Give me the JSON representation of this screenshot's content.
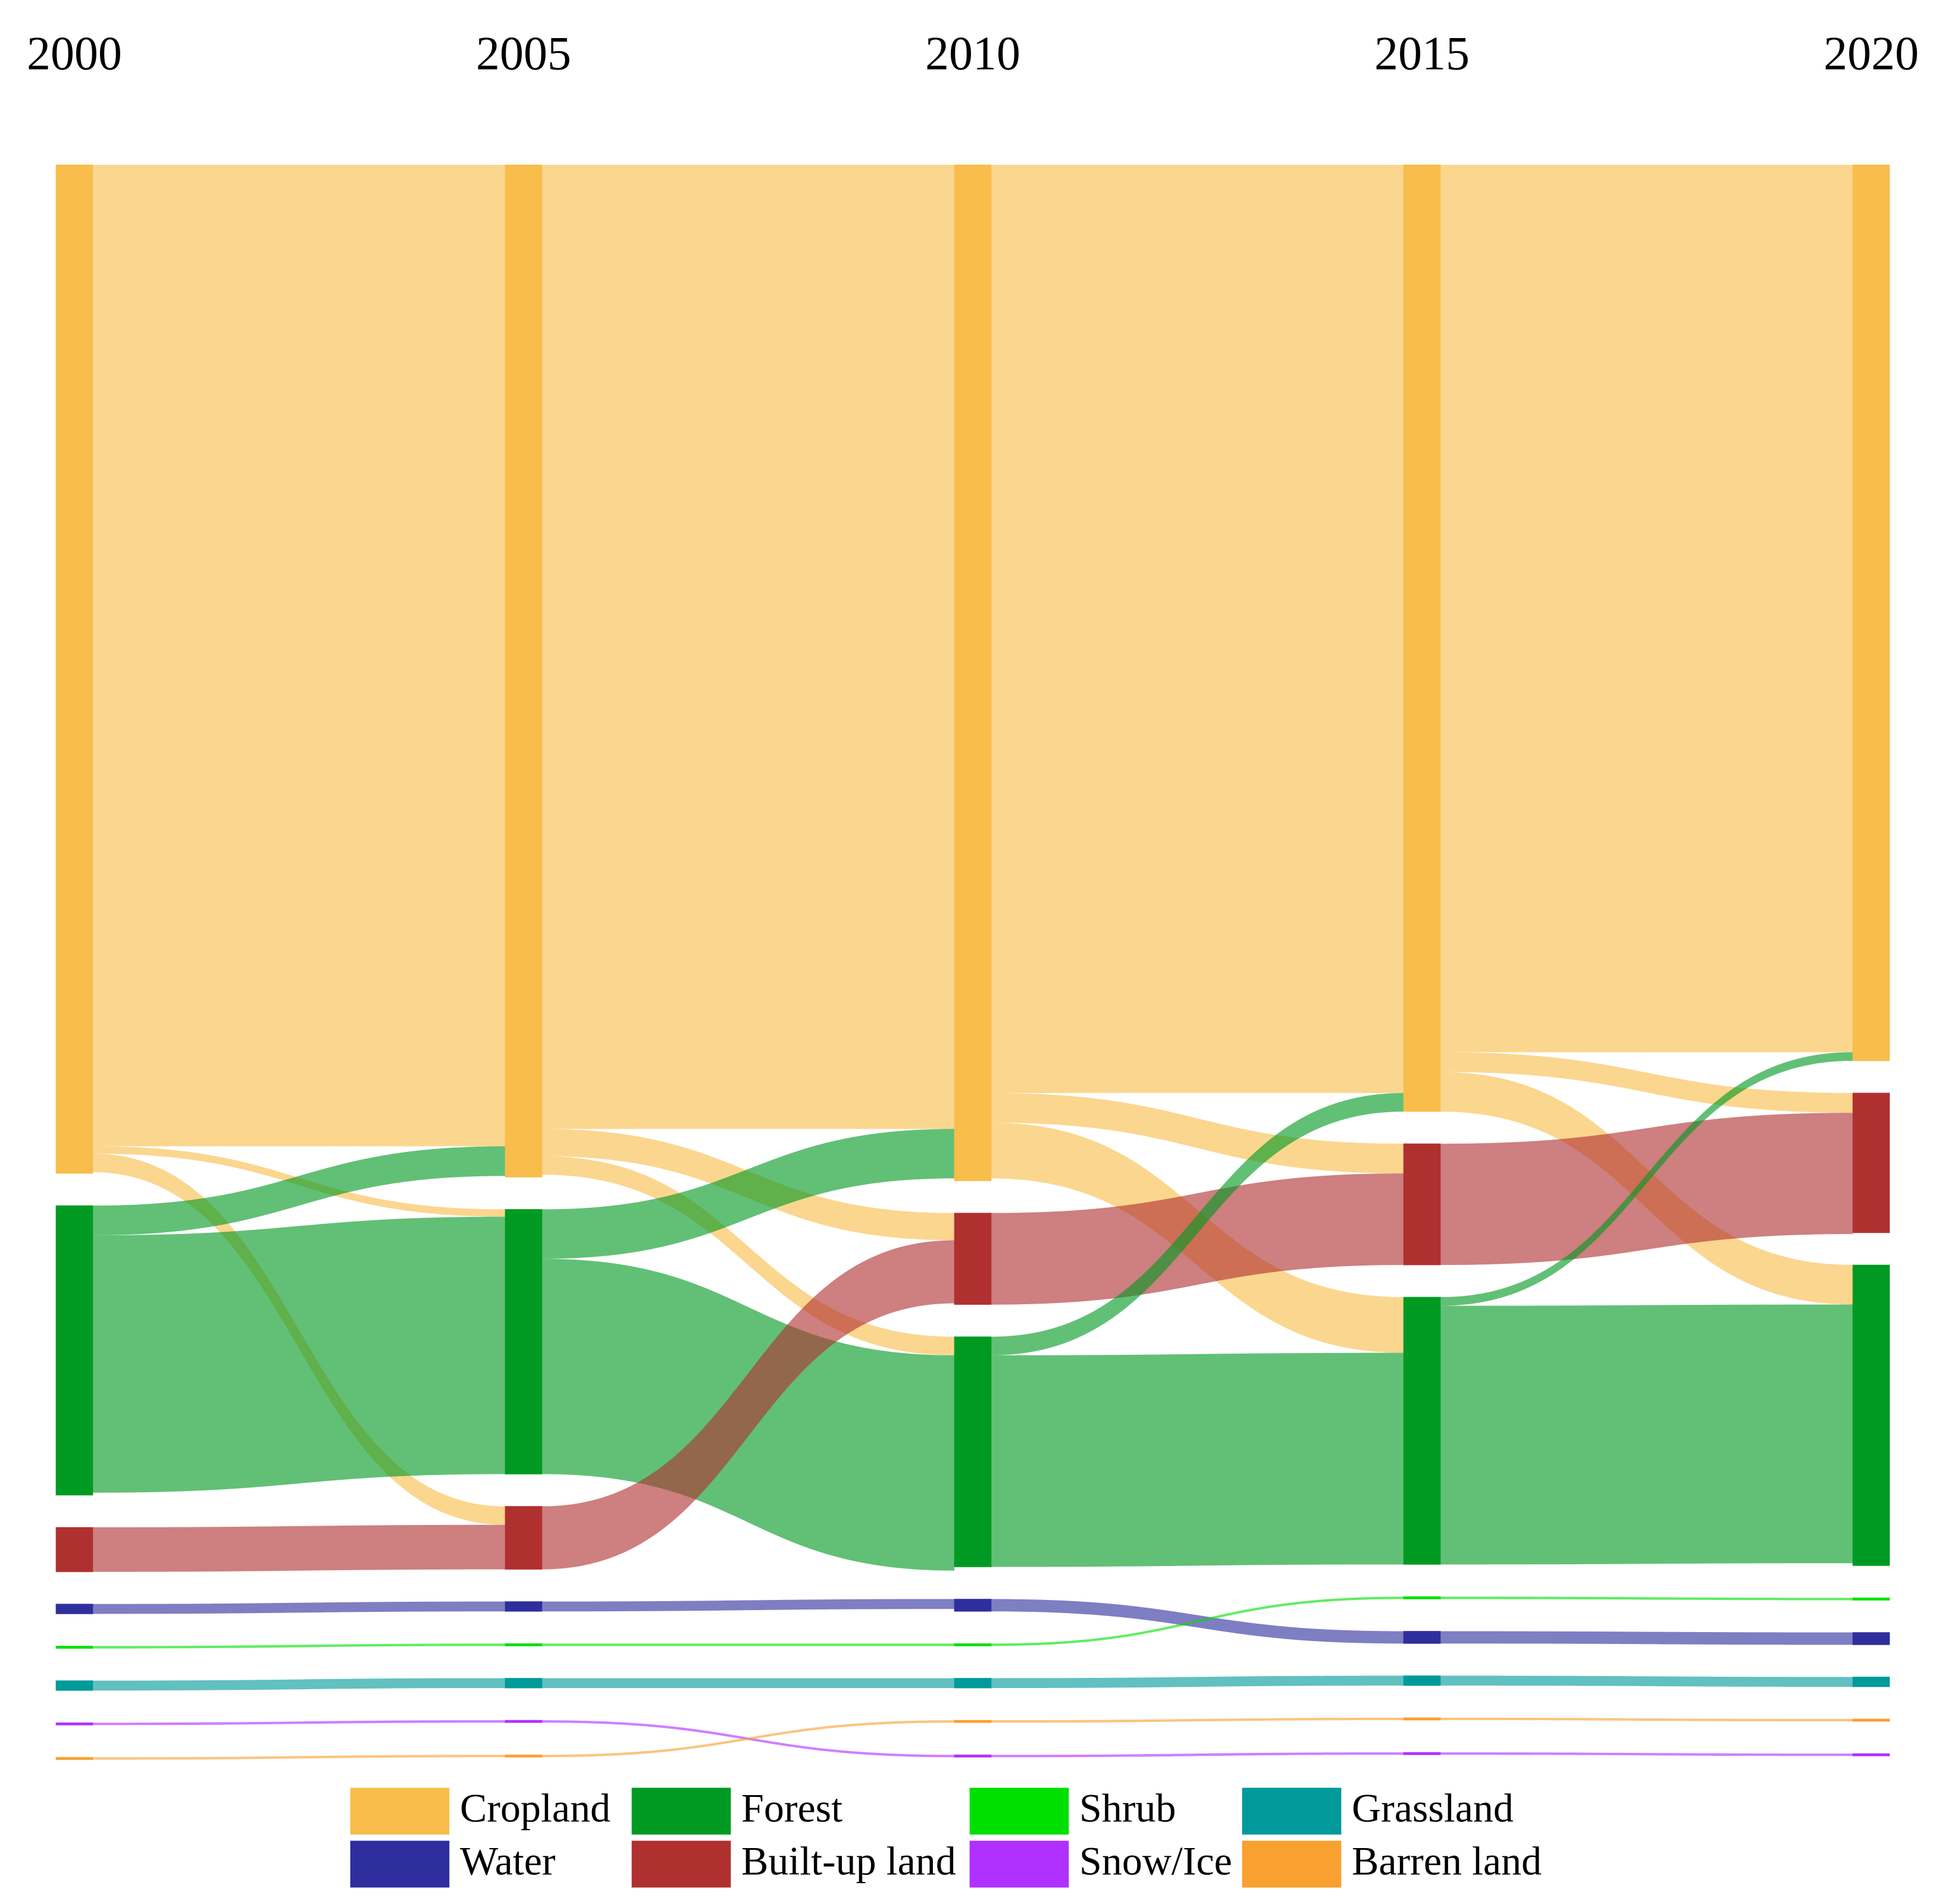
{
  "chart_data": {
    "type": "sankey",
    "categories": [
      {
        "name": "Cropland",
        "color": "#f8bd4a"
      },
      {
        "name": "Forest",
        "color": "#009a22"
      },
      {
        "name": "Shrub",
        "color": "#00e000"
      },
      {
        "name": "Grassland",
        "color": "#009a9a"
      },
      {
        "name": "Water",
        "color": "#2e2e9e"
      },
      {
        "name": "Built-up land",
        "color": "#b03030"
      },
      {
        "name": "Snow/Ice",
        "color": "#b030ff"
      },
      {
        "name": "Barren land",
        "color": "#f8a030"
      }
    ],
    "columns": [
      {
        "label": "2000",
        "nodes": [
          {
            "category": "Cropland",
            "value": 815
          },
          {
            "category": "Forest",
            "value": 234
          },
          {
            "category": "Built-up land",
            "value": 36
          },
          {
            "category": "Water",
            "value": 8
          },
          {
            "category": "Shrub",
            "value": 2
          },
          {
            "category": "Grassland",
            "value": 8
          },
          {
            "category": "Snow/Ice",
            "value": 2
          },
          {
            "category": "Barren land",
            "value": 2
          }
        ],
        "flows": [
          {
            "source": "Cropland",
            "target": "Cropland",
            "value": 793
          },
          {
            "source": "Cropland",
            "target": "Forest",
            "value": 6
          },
          {
            "source": "Cropland",
            "target": "Built-up land",
            "value": 15
          },
          {
            "source": "Forest",
            "target": "Cropland",
            "value": 24
          },
          {
            "source": "Forest",
            "target": "Forest",
            "value": 208
          },
          {
            "source": "Built-up land",
            "target": "Built-up land",
            "value": 36
          },
          {
            "source": "Water",
            "target": "Water",
            "value": 8
          },
          {
            "source": "Shrub",
            "target": "Shrub",
            "value": 2
          },
          {
            "source": "Grassland",
            "target": "Grassland",
            "value": 8
          },
          {
            "source": "Snow/Ice",
            "target": "Snow/Ice",
            "value": 2
          },
          {
            "source": "Barren land",
            "target": "Barren land",
            "value": 2
          }
        ]
      },
      {
        "label": "2005",
        "nodes": [
          {
            "category": "Cropland",
            "value": 818
          },
          {
            "category": "Forest",
            "value": 214
          },
          {
            "category": "Built-up land",
            "value": 51
          },
          {
            "category": "Water",
            "value": 8
          },
          {
            "category": "Shrub",
            "value": 2
          },
          {
            "category": "Grassland",
            "value": 8
          },
          {
            "category": "Snow/Ice",
            "value": 2
          },
          {
            "category": "Barren land",
            "value": 2
          }
        ],
        "flows": [
          {
            "source": "Cropland",
            "target": "Cropland",
            "value": 779
          },
          {
            "source": "Cropland",
            "target": "Built-up land",
            "value": 22
          },
          {
            "source": "Cropland",
            "target": "Forest",
            "value": 15
          },
          {
            "source": "Forest",
            "target": "Cropland",
            "value": 40
          },
          {
            "source": "Forest",
            "target": "Forest",
            "value": 174
          },
          {
            "source": "Built-up land",
            "target": "Built-up land",
            "value": 51
          },
          {
            "source": "Water",
            "target": "Water",
            "value": 8
          },
          {
            "source": "Shrub",
            "target": "Shrub",
            "value": 2
          },
          {
            "source": "Grassland",
            "target": "Grassland",
            "value": 8
          },
          {
            "source": "Snow/Ice",
            "target": "Snow/Ice",
            "value": 2
          },
          {
            "source": "Barren land",
            "target": "Barren land",
            "value": 2
          }
        ]
      },
      {
        "label": "2010",
        "nodes": [
          {
            "category": "Cropland",
            "value": 821
          },
          {
            "category": "Built-up land",
            "value": 74
          },
          {
            "category": "Forest",
            "value": 186
          },
          {
            "category": "Water",
            "value": 10
          },
          {
            "category": "Shrub",
            "value": 2
          },
          {
            "category": "Grassland",
            "value": 8
          },
          {
            "category": "Barren land",
            "value": 2
          },
          {
            "category": "Snow/Ice",
            "value": 2
          }
        ],
        "flows": [
          {
            "source": "Cropland",
            "target": "Cropland",
            "value": 750
          },
          {
            "source": "Cropland",
            "target": "Built-up land",
            "value": 24
          },
          {
            "source": "Cropland",
            "target": "Forest",
            "value": 45
          },
          {
            "source": "Built-up land",
            "target": "Built-up land",
            "value": 74
          },
          {
            "source": "Forest",
            "target": "Cropland",
            "value": 15
          },
          {
            "source": "Forest",
            "target": "Forest",
            "value": 171
          },
          {
            "source": "Water",
            "target": "Water",
            "value": 10
          },
          {
            "source": "Shrub",
            "target": "Shrub",
            "value": 2
          },
          {
            "source": "Grassland",
            "target": "Grassland",
            "value": 8
          },
          {
            "source": "Barren land",
            "target": "Barren land",
            "value": 2
          },
          {
            "source": "Snow/Ice",
            "target": "Snow/Ice",
            "value": 2
          }
        ]
      },
      {
        "label": "2015",
        "nodes": [
          {
            "category": "Cropland",
            "value": 765
          },
          {
            "category": "Built-up land",
            "value": 98
          },
          {
            "category": "Forest",
            "value": 216
          },
          {
            "category": "Shrub",
            "value": 2
          },
          {
            "category": "Water",
            "value": 10
          },
          {
            "category": "Grassland",
            "value": 8
          },
          {
            "category": "Barren land",
            "value": 2
          },
          {
            "category": "Snow/Ice",
            "value": 2
          }
        ],
        "flows": [
          {
            "source": "Cropland",
            "target": "Cropland",
            "value": 717
          },
          {
            "source": "Cropland",
            "target": "Built-up land",
            "value": 16
          },
          {
            "source": "Cropland",
            "target": "Forest",
            "value": 32
          },
          {
            "source": "Built-up land",
            "target": "Built-up land",
            "value": 98
          },
          {
            "source": "Forest",
            "target": "Cropland",
            "value": 7
          },
          {
            "source": "Forest",
            "target": "Forest",
            "value": 209
          },
          {
            "source": "Shrub",
            "target": "Shrub",
            "value": 2
          },
          {
            "source": "Water",
            "target": "Water",
            "value": 10
          },
          {
            "source": "Grassland",
            "target": "Grassland",
            "value": 8
          },
          {
            "source": "Barren land",
            "target": "Barren land",
            "value": 2
          },
          {
            "source": "Snow/Ice",
            "target": "Snow/Ice",
            "value": 2
          }
        ]
      },
      {
        "label": "2020",
        "nodes": [
          {
            "category": "Cropland",
            "value": 724
          },
          {
            "category": "Built-up land",
            "value": 113
          },
          {
            "category": "Forest",
            "value": 243
          },
          {
            "category": "Shrub",
            "value": 2
          },
          {
            "category": "Water",
            "value": 10
          },
          {
            "category": "Grassland",
            "value": 8
          },
          {
            "category": "Barren land",
            "value": 2
          },
          {
            "category": "Snow/Ice",
            "value": 2
          }
        ]
      }
    ]
  }
}
